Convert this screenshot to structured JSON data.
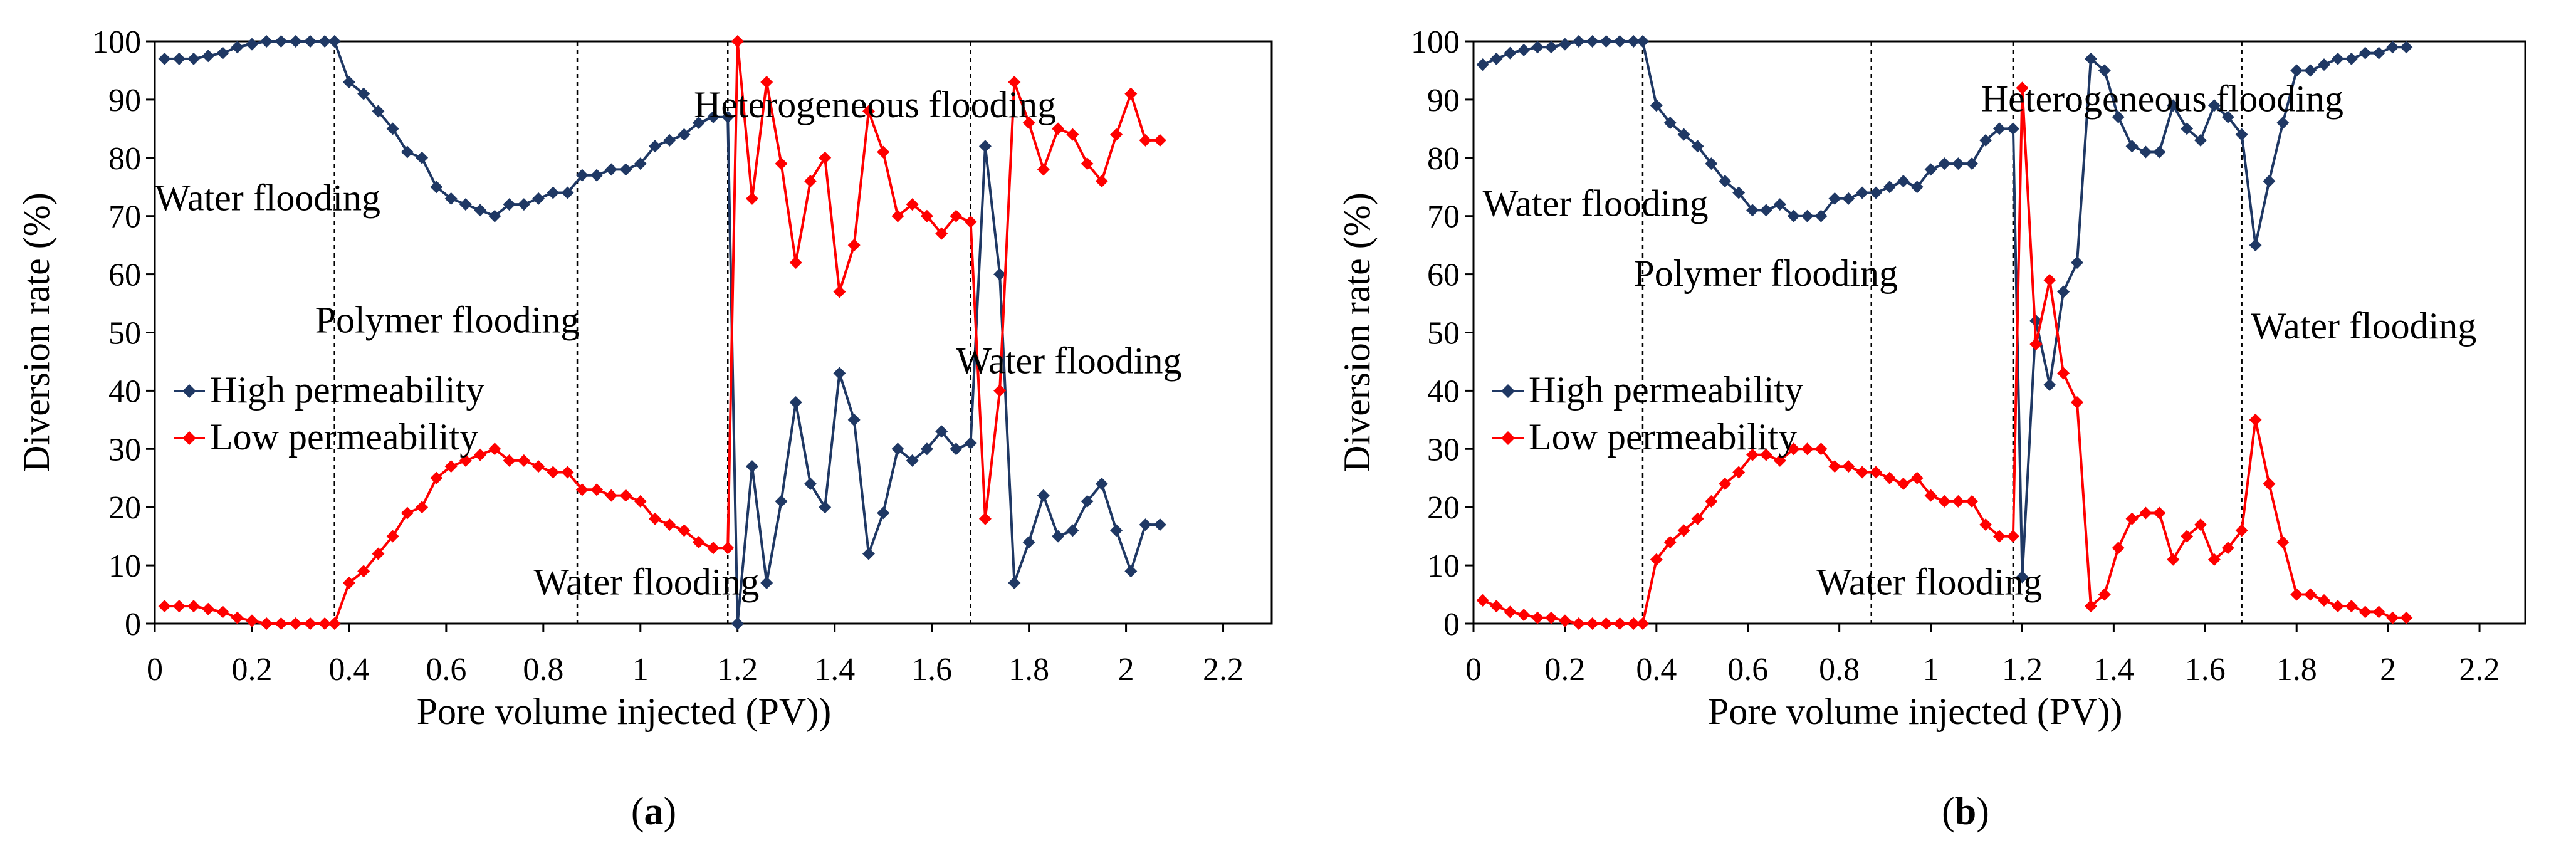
{
  "colors": {
    "high": "#1f3864",
    "low": "#ff0000",
    "axis": "#000000"
  },
  "chart_data": [
    {
      "panel": "a",
      "panel_label": "a",
      "type": "line",
      "xlabel": "Pore volume injected (PV))",
      "ylabel": "Diversion rate (%)",
      "xlim": [
        0,
        2.3
      ],
      "ylim": [
        0,
        100
      ],
      "xticks": [
        0,
        0.2,
        0.4,
        0.6,
        0.8,
        1,
        1.2,
        1.4,
        1.6,
        1.8,
        2,
        2.2
      ],
      "xtick_labels": [
        "0",
        "0.2",
        "0.4",
        "0.6",
        "0.8",
        "1",
        "1.2",
        "1.4",
        "1.6",
        "1.8",
        "2",
        "2.2"
      ],
      "yticks": [
        0,
        10,
        20,
        30,
        40,
        50,
        60,
        70,
        80,
        90,
        100
      ],
      "ytick_labels": [
        "0",
        "10",
        "20",
        "30",
        "40",
        "50",
        "60",
        "70",
        "80",
        "90",
        "100"
      ],
      "stage_boundaries": [
        0.37,
        0.87,
        1.18,
        1.68
      ],
      "legend": {
        "position": "middle-left",
        "entries": [
          "High permeability",
          "Low permeability"
        ]
      },
      "annotations": [
        {
          "text": "Water flooding",
          "x": 0.0,
          "y": 71
        },
        {
          "text": "Polymer flooding",
          "x": 0.33,
          "y": 50
        },
        {
          "text": "Water flooding",
          "x": 0.78,
          "y": 5
        },
        {
          "text": "Heterogeneous flooding",
          "x": 1.11,
          "y": 87
        },
        {
          "text": "Water flooding",
          "x": 1.65,
          "y": 43
        }
      ],
      "series": [
        {
          "name": "High permeability",
          "x": [
            0.02,
            0.05,
            0.08,
            0.11,
            0.14,
            0.17,
            0.2,
            0.23,
            0.26,
            0.29,
            0.32,
            0.35,
            0.37,
            0.4,
            0.43,
            0.46,
            0.49,
            0.52,
            0.55,
            0.58,
            0.61,
            0.64,
            0.67,
            0.7,
            0.73,
            0.76,
            0.79,
            0.82,
            0.85,
            0.88,
            0.91,
            0.94,
            0.97,
            1.0,
            1.03,
            1.06,
            1.09,
            1.12,
            1.15,
            1.18,
            1.2,
            1.23,
            1.26,
            1.29,
            1.32,
            1.35,
            1.38,
            1.41,
            1.44,
            1.47,
            1.5,
            1.53,
            1.56,
            1.59,
            1.62,
            1.65,
            1.68,
            1.71,
            1.74,
            1.77,
            1.8,
            1.83,
            1.86,
            1.89,
            1.92,
            1.95,
            1.98,
            2.01,
            2.04,
            2.07
          ],
          "y": [
            97,
            97,
            97,
            97.5,
            98,
            99,
            99.5,
            100,
            100,
            100,
            100,
            100,
            100,
            93,
            91,
            88,
            85,
            81,
            80,
            75,
            73,
            72,
            71,
            70,
            72,
            72,
            73,
            74,
            74,
            77,
            77,
            78,
            78,
            79,
            82,
            83,
            84,
            86,
            87,
            87,
            0,
            27,
            7,
            21,
            38,
            24,
            20,
            43,
            35,
            12,
            19,
            30,
            28,
            30,
            33,
            30,
            31,
            82,
            60,
            7,
            14,
            22,
            15,
            16,
            21,
            24,
            16,
            9,
            17,
            17
          ]
        },
        {
          "name": "Low permeability",
          "x": [
            0.02,
            0.05,
            0.08,
            0.11,
            0.14,
            0.17,
            0.2,
            0.23,
            0.26,
            0.29,
            0.32,
            0.35,
            0.37,
            0.4,
            0.43,
            0.46,
            0.49,
            0.52,
            0.55,
            0.58,
            0.61,
            0.64,
            0.67,
            0.7,
            0.73,
            0.76,
            0.79,
            0.82,
            0.85,
            0.88,
            0.91,
            0.94,
            0.97,
            1.0,
            1.03,
            1.06,
            1.09,
            1.12,
            1.15,
            1.18,
            1.2,
            1.23,
            1.26,
            1.29,
            1.32,
            1.35,
            1.38,
            1.41,
            1.44,
            1.47,
            1.5,
            1.53,
            1.56,
            1.59,
            1.62,
            1.65,
            1.68,
            1.71,
            1.74,
            1.77,
            1.8,
            1.83,
            1.86,
            1.89,
            1.92,
            1.95,
            1.98,
            2.01,
            2.04,
            2.07
          ],
          "y": [
            3,
            3,
            3,
            2.5,
            2,
            1,
            0.5,
            0,
            0,
            0,
            0,
            0,
            0,
            7,
            9,
            12,
            15,
            19,
            20,
            25,
            27,
            28,
            29,
            30,
            28,
            28,
            27,
            26,
            26,
            23,
            23,
            22,
            22,
            21,
            18,
            17,
            16,
            14,
            13,
            13,
            100,
            73,
            93,
            79,
            62,
            76,
            80,
            57,
            65,
            88,
            81,
            70,
            72,
            70,
            67,
            70,
            69,
            18,
            40,
            93,
            86,
            78,
            85,
            84,
            79,
            76,
            84,
            91,
            83,
            83
          ]
        }
      ]
    },
    {
      "panel": "b",
      "panel_label": "b",
      "type": "line",
      "xlabel": "Pore volume injected (PV))",
      "ylabel": "Diversion rate (%)",
      "xlim": [
        0,
        2.3
      ],
      "ylim": [
        0,
        100
      ],
      "xticks": [
        0,
        0.2,
        0.4,
        0.6,
        0.8,
        1,
        1.2,
        1.4,
        1.6,
        1.8,
        2,
        2.2
      ],
      "xtick_labels": [
        "0",
        "0.2",
        "0.4",
        "0.6",
        "0.8",
        "1",
        "1.2",
        "1.4",
        "1.6",
        "1.8",
        "2",
        "2.2"
      ],
      "yticks": [
        0,
        10,
        20,
        30,
        40,
        50,
        60,
        70,
        80,
        90,
        100
      ],
      "ytick_labels": [
        "0",
        "10",
        "20",
        "30",
        "40",
        "50",
        "60",
        "70",
        "80",
        "90",
        "100"
      ],
      "stage_boundaries": [
        0.37,
        0.87,
        1.18,
        1.68
      ],
      "legend": {
        "position": "middle-left",
        "entries": [
          "High permeability",
          "Low permeability"
        ]
      },
      "annotations": [
        {
          "text": "Water flooding",
          "x": 0.02,
          "y": 70
        },
        {
          "text": "Polymer flooding",
          "x": 0.35,
          "y": 58
        },
        {
          "text": "Water flooding",
          "x": 0.75,
          "y": 5
        },
        {
          "text": "Heterogeneous flooding",
          "x": 1.11,
          "y": 88
        },
        {
          "text": "Water flooding",
          "x": 1.7,
          "y": 49
        }
      ],
      "series": [
        {
          "name": "High permeability",
          "x": [
            0.02,
            0.05,
            0.08,
            0.11,
            0.14,
            0.17,
            0.2,
            0.23,
            0.26,
            0.29,
            0.32,
            0.35,
            0.37,
            0.4,
            0.43,
            0.46,
            0.49,
            0.52,
            0.55,
            0.58,
            0.61,
            0.64,
            0.67,
            0.7,
            0.73,
            0.76,
            0.79,
            0.82,
            0.85,
            0.88,
            0.91,
            0.94,
            0.97,
            1.0,
            1.03,
            1.06,
            1.09,
            1.12,
            1.15,
            1.18,
            1.2,
            1.23,
            1.26,
            1.29,
            1.32,
            1.35,
            1.38,
            1.41,
            1.44,
            1.47,
            1.5,
            1.53,
            1.56,
            1.59,
            1.62,
            1.65,
            1.68,
            1.71,
            1.74,
            1.77,
            1.8,
            1.83,
            1.86,
            1.89,
            1.92,
            1.95,
            1.98,
            2.01,
            2.04
          ],
          "y": [
            96,
            97,
            98,
            98.5,
            99,
            99,
            99.5,
            100,
            100,
            100,
            100,
            100,
            100,
            89,
            86,
            84,
            82,
            79,
            76,
            74,
            71,
            71,
            72,
            70,
            70,
            70,
            73,
            73,
            74,
            74,
            75,
            76,
            75,
            78,
            79,
            79,
            79,
            83,
            85,
            85,
            8,
            52,
            41,
            57,
            62,
            97,
            95,
            87,
            82,
            81,
            81,
            89,
            85,
            83,
            89,
            87,
            84,
            65,
            76,
            86,
            95,
            95,
            96,
            97,
            97,
            98,
            98,
            99,
            99
          ]
        },
        {
          "name": "Low permeability",
          "x": [
            0.02,
            0.05,
            0.08,
            0.11,
            0.14,
            0.17,
            0.2,
            0.23,
            0.26,
            0.29,
            0.32,
            0.35,
            0.37,
            0.4,
            0.43,
            0.46,
            0.49,
            0.52,
            0.55,
            0.58,
            0.61,
            0.64,
            0.67,
            0.7,
            0.73,
            0.76,
            0.79,
            0.82,
            0.85,
            0.88,
            0.91,
            0.94,
            0.97,
            1.0,
            1.03,
            1.06,
            1.09,
            1.12,
            1.15,
            1.18,
            1.2,
            1.23,
            1.26,
            1.29,
            1.32,
            1.35,
            1.38,
            1.41,
            1.44,
            1.47,
            1.5,
            1.53,
            1.56,
            1.59,
            1.62,
            1.65,
            1.68,
            1.71,
            1.74,
            1.77,
            1.8,
            1.83,
            1.86,
            1.89,
            1.92,
            1.95,
            1.98,
            2.01,
            2.04
          ],
          "y": [
            4,
            3,
            2,
            1.5,
            1,
            1,
            0.5,
            0,
            0,
            0,
            0,
            0,
            0,
            11,
            14,
            16,
            18,
            21,
            24,
            26,
            29,
            29,
            28,
            30,
            30,
            30,
            27,
            27,
            26,
            26,
            25,
            24,
            25,
            22,
            21,
            21,
            21,
            17,
            15,
            15,
            92,
            48,
            59,
            43,
            38,
            3,
            5,
            13,
            18,
            19,
            19,
            11,
            15,
            17,
            11,
            13,
            16,
            35,
            24,
            14,
            5,
            5,
            4,
            3,
            3,
            2,
            2,
            1,
            1
          ]
        }
      ]
    }
  ]
}
